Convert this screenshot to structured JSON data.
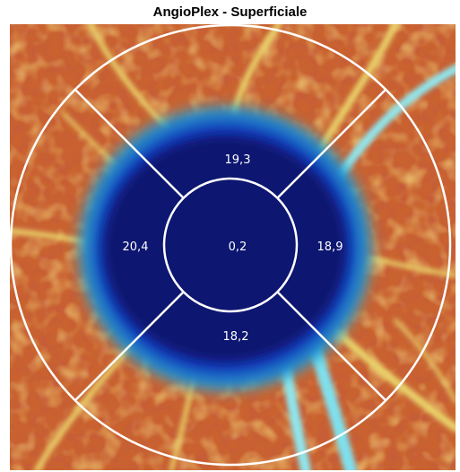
{
  "title": "AngioPlex - Superficiale",
  "sector_values": {
    "superior": "19,3",
    "temporal": "20,4",
    "center": "0,2",
    "nasal": "18,9",
    "inferior": "18,2"
  },
  "colors": {
    "grid_lines": "#ffffff",
    "avascular_zone": "#0a1a7a",
    "flow_low": "#d24a2a",
    "flow_mid": "#e8c84a",
    "flow_high": "#5fd2e6"
  }
}
